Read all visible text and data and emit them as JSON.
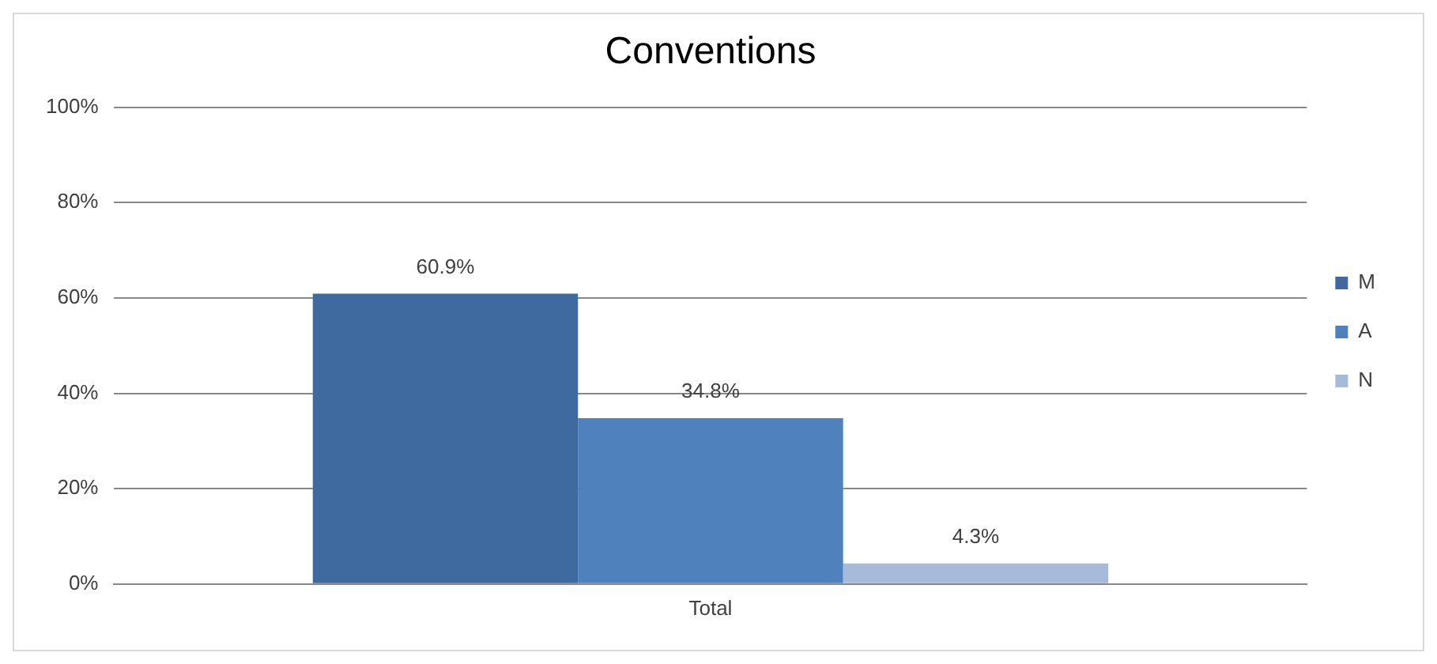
{
  "chart_data": {
    "type": "bar",
    "title": "Conventions",
    "categories": [
      "Total"
    ],
    "series": [
      {
        "name": "M",
        "color": "#3f6a9f",
        "values": [
          60.9
        ],
        "value_labels": [
          "60.9%"
        ]
      },
      {
        "name": "A",
        "color": "#4f81bd",
        "values": [
          34.8
        ],
        "value_labels": [
          "34.8%"
        ]
      },
      {
        "name": "N",
        "color": "#a7bad9",
        "values": [
          4.3
        ],
        "value_labels": [
          "4.3%"
        ]
      }
    ],
    "ylim": [
      0,
      100
    ],
    "yticks": [
      {
        "value": 0,
        "label": "0%"
      },
      {
        "value": 20,
        "label": "20%"
      },
      {
        "value": 40,
        "label": "40%"
      },
      {
        "value": 60,
        "label": "60%"
      },
      {
        "value": 80,
        "label": "80%"
      },
      {
        "value": 100,
        "label": "100%"
      }
    ],
    "grid": "y",
    "legend": "right"
  }
}
